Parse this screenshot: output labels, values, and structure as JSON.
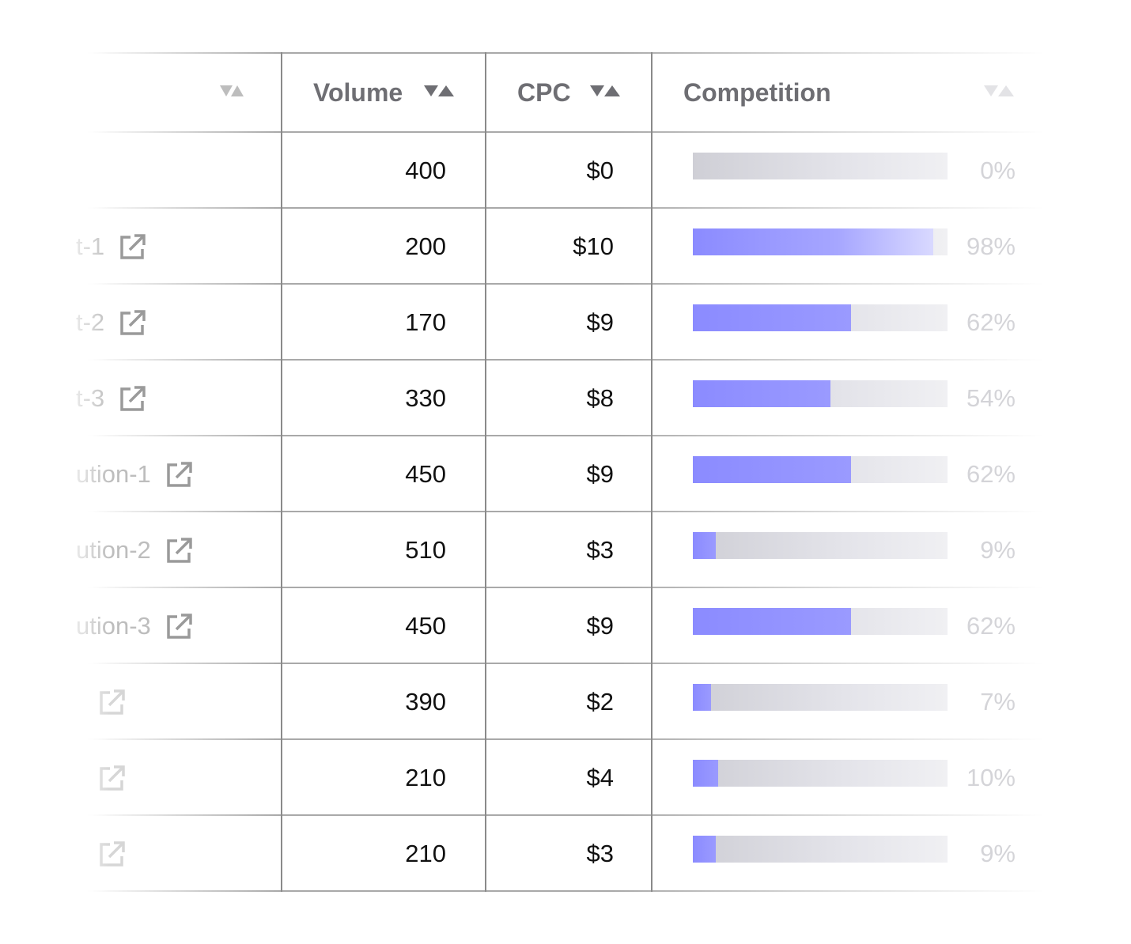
{
  "columns": {
    "keyword_label": "",
    "volume_label": "Volume",
    "cpc_label": "CPC",
    "competition_label": "Competition"
  },
  "rows": [
    {
      "keyword": "",
      "has_link": false,
      "volume": "400",
      "cpc": "$0",
      "competition": 0,
      "competition_label": "0%"
    },
    {
      "keyword": "t-1",
      "has_link": true,
      "volume": "200",
      "cpc": "$10",
      "competition": 98,
      "competition_label": "98%"
    },
    {
      "keyword": "t-2",
      "has_link": true,
      "volume": "170",
      "cpc": "$9",
      "competition": 62,
      "competition_label": "62%"
    },
    {
      "keyword": "t-3",
      "has_link": true,
      "volume": "330",
      "cpc": "$8",
      "competition": 54,
      "competition_label": "54%"
    },
    {
      "keyword": "ution-1",
      "has_link": true,
      "volume": "450",
      "cpc": "$9",
      "competition": 62,
      "competition_label": "62%"
    },
    {
      "keyword": "ution-2",
      "has_link": true,
      "volume": "510",
      "cpc": "$3",
      "competition": 9,
      "competition_label": "9%"
    },
    {
      "keyword": "ution-3",
      "has_link": true,
      "volume": "450",
      "cpc": "$9",
      "competition": 62,
      "competition_label": "62%"
    },
    {
      "keyword": "",
      "has_link": true,
      "volume": "390",
      "cpc": "$2",
      "competition": 7,
      "competition_label": "7%"
    },
    {
      "keyword": "",
      "has_link": true,
      "volume": "210",
      "cpc": "$4",
      "competition": 10,
      "competition_label": "10%"
    },
    {
      "keyword": "",
      "has_link": true,
      "volume": "210",
      "cpc": "$3",
      "competition": 9,
      "competition_label": "9%"
    }
  ],
  "colors": {
    "bar_fill": "#8b8bff",
    "bar_fill_light": "#d9d9ff",
    "header_text": "#6e6e73",
    "percent_text": "#d4d4d8"
  },
  "icons": {
    "sort": "sort-arrows-icon",
    "link": "external-link-icon"
  }
}
